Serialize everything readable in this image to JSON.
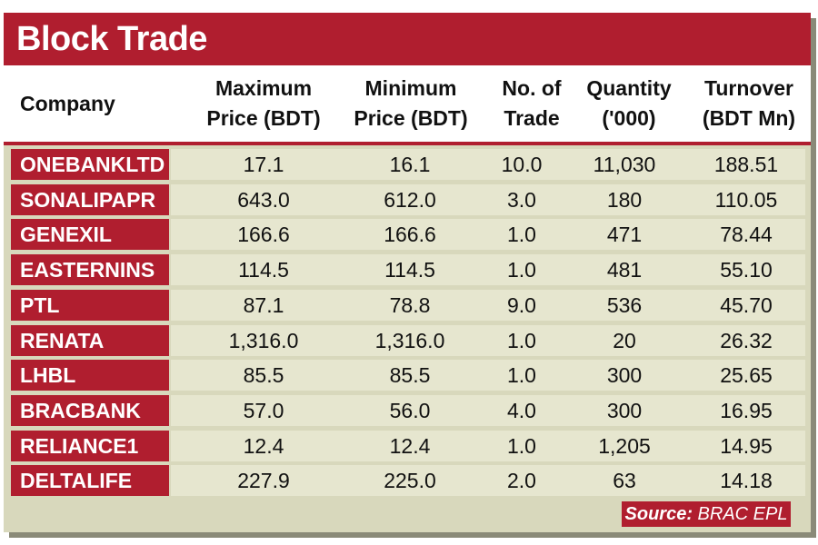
{
  "chart_data": {
    "type": "table",
    "title": "Block Trade",
    "columns": [
      "Company",
      "Maximum\nPrice (BDT)",
      "Minimum\nPrice (BDT)",
      "No. of\nTrade",
      "Quantity\n('000)",
      "Turnover\n(BDT Mn)"
    ],
    "rows": [
      [
        "ONEBANKLTD",
        "17.1",
        "16.1",
        "10.0",
        "11,030",
        "188.51"
      ],
      [
        "SONALIPAPR",
        "643.0",
        "612.0",
        "3.0",
        "180",
        "110.05"
      ],
      [
        "GENEXIL",
        "166.6",
        "166.6",
        "1.0",
        "471",
        "78.44"
      ],
      [
        "EASTERNINS",
        "114.5",
        "114.5",
        "1.0",
        "481",
        "55.10"
      ],
      [
        "PTL",
        "87.1",
        "78.8",
        "9.0",
        "536",
        "45.70"
      ],
      [
        "RENATA",
        "1,316.0",
        "1,316.0",
        "1.0",
        "20",
        "26.32"
      ],
      [
        "LHBL",
        "85.5",
        "85.5",
        "1.0",
        "300",
        "25.65"
      ],
      [
        "BRACBANK",
        "57.0",
        "56.0",
        "4.0",
        "300",
        "16.95"
      ],
      [
        "RELIANCE1",
        "12.4",
        "12.4",
        "1.0",
        "1,205",
        "14.95"
      ],
      [
        "DELTALIFE",
        "227.9",
        "225.0",
        "2.0",
        "63",
        "14.18"
      ]
    ]
  },
  "source": {
    "label": "Source:",
    "value": "BRAC EPL"
  },
  "colors": {
    "accent": "#b01e2f",
    "panel": "#d8d8bc",
    "row_fill": "#e6e6cf"
  }
}
